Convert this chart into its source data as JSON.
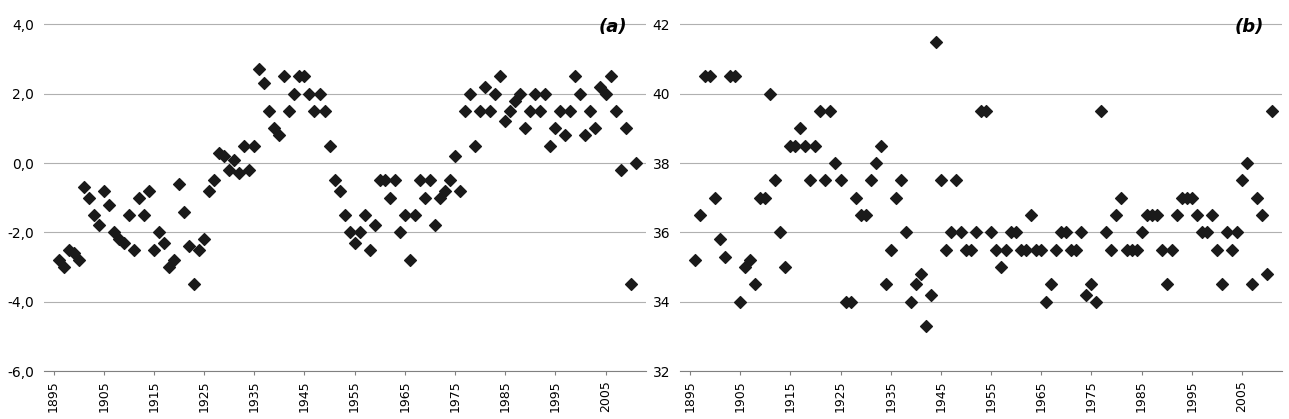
{
  "title_a": "(a)",
  "title_b": "(b)",
  "bg_color": "#ffffff",
  "marker_color": "#1a1a1a",
  "marker": "D",
  "marker_size": 36,
  "years_a": [
    1896,
    1897,
    1898,
    1899,
    1900,
    1901,
    1902,
    1903,
    1904,
    1905,
    1906,
    1907,
    1908,
    1909,
    1910,
    1911,
    1912,
    1913,
    1914,
    1915,
    1916,
    1917,
    1918,
    1919,
    1920,
    1921,
    1922,
    1923,
    1924,
    1925,
    1926,
    1927,
    1928,
    1929,
    1930,
    1931,
    1932,
    1933,
    1934,
    1935,
    1936,
    1937,
    1938,
    1939,
    1940,
    1941,
    1942,
    1943,
    1944,
    1945,
    1946,
    1947,
    1948,
    1949,
    1950,
    1951,
    1952,
    1953,
    1954,
    1955,
    1956,
    1957,
    1958,
    1959,
    1960,
    1961,
    1962,
    1963,
    1964,
    1965,
    1966,
    1967,
    1968,
    1969,
    1970,
    1971,
    1972,
    1973,
    1974,
    1975,
    1976,
    1977,
    1978,
    1979,
    1980,
    1981,
    1982,
    1983,
    1984,
    1985,
    1986,
    1987,
    1988,
    1989,
    1990,
    1991,
    1992,
    1993,
    1994,
    1995,
    1996,
    1997,
    1998,
    1999,
    2000,
    2001,
    2002,
    2003,
    2004,
    2005,
    2006,
    2007,
    2008,
    2009,
    2010,
    2011
  ],
  "values_a": [
    -2.8,
    -3.0,
    -2.5,
    -2.6,
    -2.8,
    -0.7,
    -1.0,
    -1.5,
    -1.8,
    -0.8,
    -1.2,
    -2.0,
    -2.2,
    -2.3,
    -1.5,
    -2.5,
    -1.0,
    -1.5,
    -0.8,
    -2.5,
    -2.0,
    -2.3,
    -3.0,
    -2.8,
    -0.6,
    -1.4,
    -2.4,
    -3.5,
    -2.5,
    -2.2,
    -0.8,
    -0.5,
    0.3,
    0.2,
    -0.2,
    0.1,
    -0.3,
    0.5,
    -0.2,
    0.5,
    2.7,
    2.3,
    1.5,
    1.0,
    0.8,
    2.5,
    1.5,
    2.0,
    2.5,
    2.5,
    2.0,
    1.5,
    2.0,
    1.5,
    0.5,
    -0.5,
    -0.8,
    -1.5,
    -2.0,
    -2.3,
    -2.0,
    -1.5,
    -2.5,
    -1.8,
    -0.5,
    -0.5,
    -1.0,
    -0.5,
    -2.0,
    -1.5,
    -2.8,
    -1.5,
    -0.5,
    -1.0,
    -0.5,
    -1.8,
    -1.0,
    -0.8,
    -0.5,
    0.2,
    -0.8,
    1.5,
    2.0,
    0.5,
    1.5,
    2.2,
    1.5,
    2.0,
    2.5,
    1.2,
    1.5,
    1.8,
    2.0,
    1.0,
    1.5,
    2.0,
    1.5,
    2.0,
    0.5,
    1.0,
    1.5,
    0.8,
    1.5,
    2.5,
    2.0,
    0.8,
    1.5,
    1.0,
    2.2,
    2.0,
    2.5,
    1.5,
    -0.2,
    1.0,
    -3.5,
    0.0
  ],
  "years_b": [
    1896,
    1897,
    1898,
    1899,
    1900,
    1901,
    1902,
    1903,
    1904,
    1905,
    1906,
    1907,
    1908,
    1909,
    1910,
    1911,
    1912,
    1913,
    1914,
    1915,
    1916,
    1917,
    1918,
    1919,
    1920,
    1921,
    1922,
    1923,
    1924,
    1925,
    1926,
    1927,
    1928,
    1929,
    1930,
    1931,
    1932,
    1933,
    1934,
    1935,
    1936,
    1937,
    1938,
    1939,
    1940,
    1941,
    1942,
    1943,
    1944,
    1945,
    1946,
    1947,
    1948,
    1949,
    1950,
    1951,
    1952,
    1953,
    1954,
    1955,
    1956,
    1957,
    1958,
    1959,
    1960,
    1961,
    1962,
    1963,
    1964,
    1965,
    1966,
    1967,
    1968,
    1969,
    1970,
    1971,
    1972,
    1973,
    1974,
    1975,
    1976,
    1977,
    1978,
    1979,
    1980,
    1981,
    1982,
    1983,
    1984,
    1985,
    1986,
    1987,
    1988,
    1989,
    1990,
    1991,
    1992,
    1993,
    1994,
    1995,
    1996,
    1997,
    1998,
    1999,
    2000,
    2001,
    2002,
    2003,
    2004,
    2005,
    2006,
    2007,
    2008,
    2009,
    2010,
    2011
  ],
  "values_b": [
    35.2,
    36.5,
    40.5,
    40.5,
    37.0,
    35.8,
    35.3,
    40.5,
    40.5,
    34.0,
    35.0,
    35.2,
    34.5,
    37.0,
    37.0,
    40.0,
    37.5,
    36.0,
    35.0,
    38.5,
    38.5,
    39.0,
    38.5,
    37.5,
    38.5,
    39.5,
    37.5,
    39.5,
    38.0,
    37.5,
    34.0,
    34.0,
    37.0,
    36.5,
    36.5,
    37.5,
    38.0,
    38.5,
    34.5,
    35.5,
    37.0,
    37.5,
    36.0,
    34.0,
    34.5,
    34.8,
    33.3,
    34.2,
    41.5,
    37.5,
    35.5,
    36.0,
    37.5,
    36.0,
    35.5,
    35.5,
    36.0,
    39.5,
    39.5,
    36.0,
    35.5,
    35.0,
    35.5,
    36.0,
    36.0,
    35.5,
    35.5,
    36.5,
    35.5,
    35.5,
    34.0,
    34.5,
    35.5,
    36.0,
    36.0,
    35.5,
    35.5,
    36.0,
    34.2,
    34.5,
    34.0,
    39.5,
    36.0,
    35.5,
    36.5,
    37.0,
    35.5,
    35.5,
    35.5,
    36.0,
    36.5,
    36.5,
    36.5,
    35.5,
    34.5,
    35.5,
    36.5,
    37.0,
    37.0,
    37.0,
    36.5,
    36.0,
    36.0,
    36.5,
    35.5,
    34.5,
    36.0,
    35.5,
    36.0,
    37.5,
    38.0,
    34.5,
    37.0,
    36.5,
    34.8,
    39.5
  ],
  "xlim_a": [
    1893,
    2013
  ],
  "xlim_b": [
    1893,
    2013
  ],
  "ylim_a": [
    -6.0,
    4.5
  ],
  "ylim_b": [
    32,
    42.5
  ],
  "yticks_a": [
    -6.0,
    -4.0,
    -2.0,
    0.0,
    2.0,
    4.0
  ],
  "yticks_b": [
    32,
    34,
    36,
    38,
    40,
    42
  ],
  "ytick_labels_a": [
    "-6,0",
    "-4,0",
    "-2,0",
    "0,0",
    "2,0",
    "4,0"
  ],
  "ytick_labels_b": [
    "32",
    "34",
    "36",
    "38",
    "40",
    "42"
  ],
  "xticks": [
    1895,
    1905,
    1915,
    1925,
    1935,
    1945,
    1955,
    1965,
    1975,
    1985,
    1995,
    2005
  ],
  "grid_color": "#b0b0b0",
  "grid_linewidth": 0.8
}
